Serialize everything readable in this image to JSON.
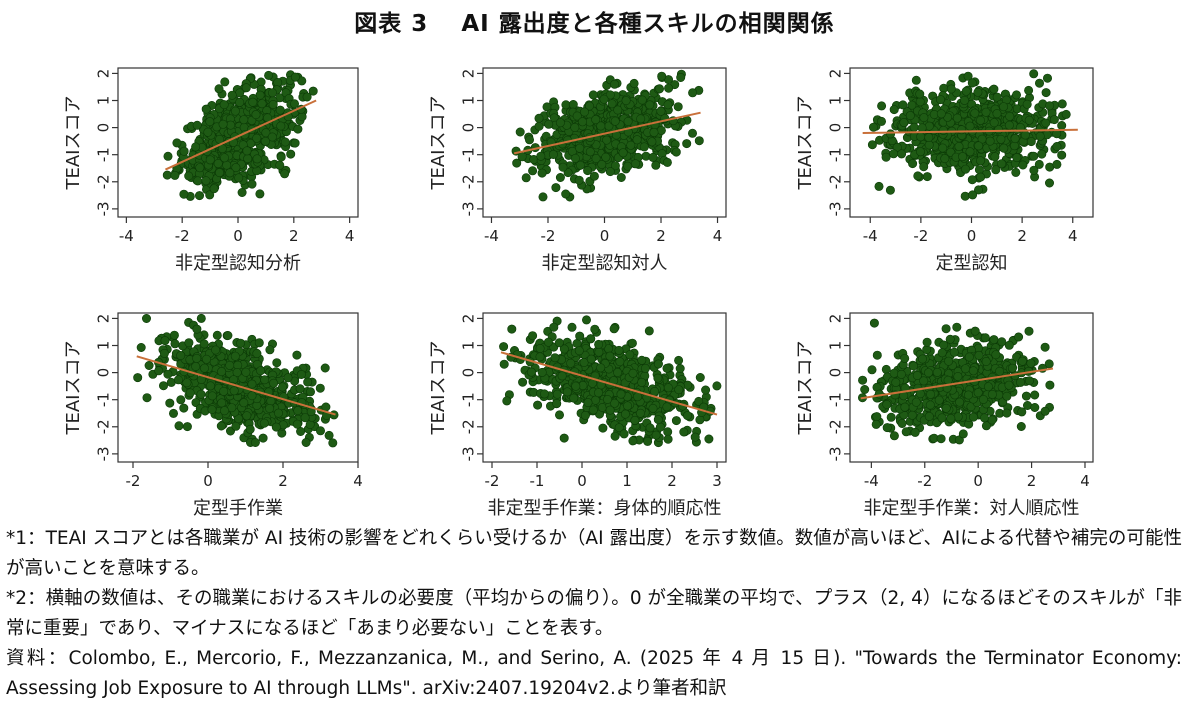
{
  "figure": {
    "title": "図表 3　 AI 露出度と各種スキルの相関関係",
    "colors": {
      "points": "#1e5a14",
      "point_edge": "#0b3a06",
      "fit_line": "#c9703a",
      "axis": "#333333"
    }
  },
  "chart_data": [
    {
      "type": "scatter",
      "xlabel": "非定型認知分析",
      "ylabel": "TEAIスコア",
      "xlim": [
        -4.3,
        4.3
      ],
      "ylim": [
        -3.3,
        2.2
      ],
      "xticks": [
        -4,
        -2,
        0,
        2,
        4
      ],
      "yticks": [
        -3,
        -2,
        -1,
        0,
        1,
        2
      ],
      "xrange_points": [
        -2.6,
        2.8
      ],
      "fit": {
        "x": [
          -2.6,
          2.8
        ],
        "y": [
          -1.55,
          1.0
        ]
      }
    },
    {
      "type": "scatter",
      "xlabel": "非定型認知対人",
      "ylabel": "TEAIスコア",
      "xlim": [
        -4.3,
        4.3
      ],
      "ylim": [
        -3.3,
        2.2
      ],
      "xticks": [
        -4,
        -2,
        0,
        2,
        4
      ],
      "yticks": [
        -3,
        -2,
        -1,
        0,
        1,
        2
      ],
      "xrange_points": [
        -3.2,
        3.4
      ],
      "fit": {
        "x": [
          -3.2,
          3.4
        ],
        "y": [
          -0.95,
          0.55
        ]
      }
    },
    {
      "type": "scatter",
      "xlabel": "定型認知",
      "ylabel": "TEAIスコア",
      "xlim": [
        -4.8,
        4.8
      ],
      "ylim": [
        -3.3,
        2.2
      ],
      "xticks": [
        -4,
        -2,
        0,
        2,
        4
      ],
      "yticks": [
        -3,
        -2,
        -1,
        0,
        1,
        2
      ],
      "xrange_points": [
        -4.3,
        4.2
      ],
      "fit": {
        "x": [
          -4.3,
          4.2
        ],
        "y": [
          -0.2,
          -0.08
        ]
      }
    },
    {
      "type": "scatter",
      "xlabel": "定型手作業",
      "ylabel": "TEAIスコア",
      "xlim": [
        -2.4,
        4.0
      ],
      "ylim": [
        -3.3,
        2.2
      ],
      "xticks": [
        -2,
        0,
        2,
        4
      ],
      "yticks": [
        -3,
        -2,
        -1,
        0,
        1,
        2
      ],
      "xrange_points": [
        -1.9,
        3.4
      ],
      "fit": {
        "x": [
          -1.9,
          3.4
        ],
        "y": [
          0.6,
          -1.55
        ]
      }
    },
    {
      "type": "scatter",
      "xlabel": "非定型手作業：身体的順応性",
      "ylabel": "TEAIスコア",
      "xlim": [
        -2.2,
        3.2
      ],
      "ylim": [
        -3.3,
        2.2
      ],
      "xticks": [
        -2,
        -1,
        0,
        1,
        2,
        3
      ],
      "yticks": [
        -3,
        -2,
        -1,
        0,
        1,
        2
      ],
      "xrange_points": [
        -1.8,
        3.0
      ],
      "fit": {
        "x": [
          -1.8,
          3.0
        ],
        "y": [
          0.75,
          -1.55
        ]
      }
    },
    {
      "type": "scatter",
      "xlabel": "非定型手作業：対人順応性",
      "ylabel": "TEAIスコア",
      "xlim": [
        -4.8,
        4.3
      ],
      "ylim": [
        -3.3,
        2.2
      ],
      "xticks": [
        -4,
        -2,
        0,
        2,
        4
      ],
      "yticks": [
        -3,
        -2,
        -1,
        0,
        1,
        2
      ],
      "xrange_points": [
        -4.4,
        2.8
      ],
      "fit": {
        "x": [
          -4.4,
          2.8
        ],
        "y": [
          -0.95,
          0.15
        ]
      }
    }
  ],
  "notes": {
    "note1": "*1：TEAI スコアとは各職業が AI 技術の影響をどれくらい受けるか（AI 露出度）を示す数値。数値が高いほど、AIによる代替や補完の可能性が高いことを意味する。",
    "note2": "*2：横軸の数値は、その職業におけるスキルの必要度（平均からの偏り）。0 が全職業の平均で、プラス（2, 4）になるほどそのスキルが「非常に重要」であり、マイナスになるほど「あまり必要ない」ことを表す。",
    "source": "資料：Colombo, E., Mercorio, F., Mezzanzanica, M., and Serino, A. (2025 年 4 月 15 日). \"Towards the Terminator Economy: Assessing Job Exposure to AI through LLMs\". arXiv:2407.19204v2.より筆者和訳"
  }
}
